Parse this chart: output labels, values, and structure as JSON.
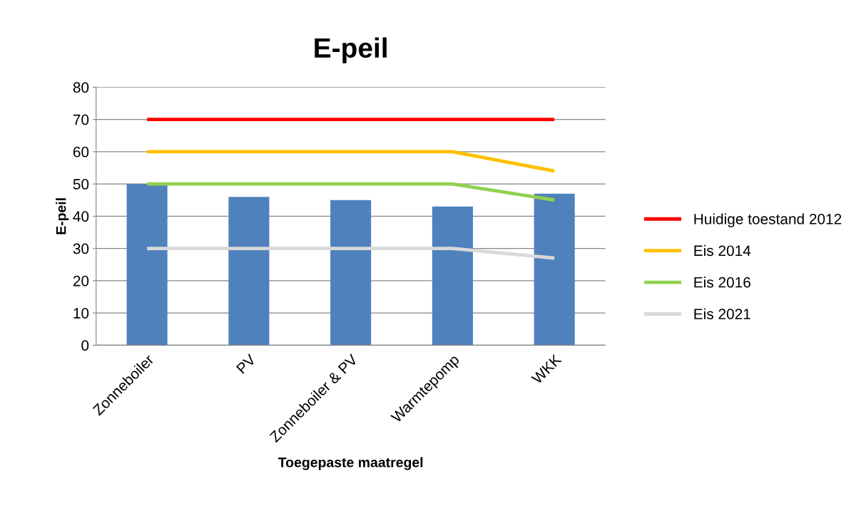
{
  "chart_data": {
    "type": "bar",
    "title": "E-peil",
    "xlabel": "Toegepaste maatregel",
    "ylabel": "E-peil",
    "categories": [
      "Zonneboiler",
      "PV",
      "Zonneboiler & PV",
      "Warmtepomp",
      "WKK"
    ],
    "series": [
      {
        "color": "#4f81bd",
        "values": [
          50,
          46,
          45,
          43,
          47
        ]
      },
      {
        "type": "line",
        "name": "Huidige toestand 2012",
        "color": "#ff0000",
        "values": [
          70,
          70,
          70,
          70,
          70
        ]
      },
      {
        "type": "line",
        "name": "Eis 2014",
        "color": "#ffc000",
        "values": [
          60,
          60,
          60,
          60,
          54
        ]
      },
      {
        "type": "line",
        "name": "Eis 2016",
        "color": "#92d050",
        "values": [
          50,
          50,
          50,
          50,
          45
        ]
      },
      {
        "type": "line",
        "name": "Eis 2021",
        "color": "#d9d9d9",
        "values": [
          30,
          30,
          30,
          30,
          27
        ]
      }
    ],
    "ylim": [
      0,
      80
    ],
    "yticks": [
      0,
      10,
      20,
      30,
      40,
      50,
      60,
      70,
      80
    ],
    "grid": "y",
    "legend": "right",
    "marker": "none",
    "line_style": "solid"
  }
}
